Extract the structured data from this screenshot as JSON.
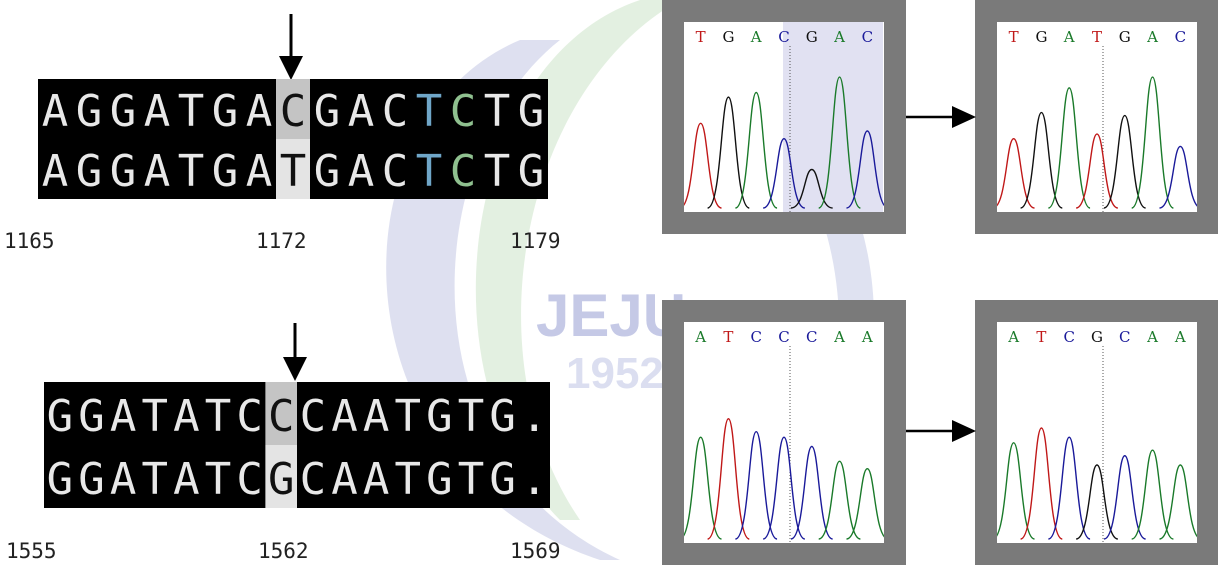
{
  "watermark": {
    "text": "JEJU",
    "year": "1952",
    "colors": {
      "blue": "#3a48a8",
      "green": "#5aa84a",
      "tint": 0.16
    }
  },
  "alignments": [
    {
      "id": "top",
      "rows": [
        "AGGATGACGACTCTG",
        "AGGATGATGACTCTG"
      ],
      "highlight_index": 7,
      "colored_letters": [
        {
          "row": 0,
          "index": 11,
          "color": "#6fa6c8"
        },
        {
          "row": 0,
          "index": 12,
          "color": "#8fc08f"
        },
        {
          "row": 1,
          "index": 11,
          "color": "#6fa6c8"
        },
        {
          "row": 1,
          "index": 12,
          "color": "#8fc08f"
        }
      ],
      "positions": {
        "left": "1165",
        "mid": "1172",
        "right": "1179"
      }
    },
    {
      "id": "bottom",
      "rows": [
        "GGATATCCCAATGTG.",
        "GGATATCGCAATGTG."
      ],
      "highlight_index": 7,
      "colored_letters": [],
      "positions": {
        "left": "1555",
        "mid": "1562",
        "right": "1569"
      }
    }
  ],
  "chromatograms": [
    {
      "id": "top-wild",
      "bases": [
        "T",
        "G",
        "A",
        "C",
        "G",
        "A",
        "C"
      ],
      "highlight": true
    },
    {
      "id": "top-mut",
      "bases": [
        "T",
        "G",
        "A",
        "T",
        "G",
        "A",
        "C"
      ],
      "highlight": false
    },
    {
      "id": "bottom-wild",
      "bases": [
        "A",
        "T",
        "C",
        "C",
        "C",
        "A",
        "A"
      ],
      "highlight": false
    },
    {
      "id": "bottom-mut",
      "bases": [
        "A",
        "T",
        "C",
        "G",
        "C",
        "A",
        "A"
      ],
      "highlight": false
    }
  ],
  "base_colors": {
    "A": "#1a7a2a",
    "T": "#c01818",
    "G": "#111111",
    "C": "#1a1a9a"
  }
}
